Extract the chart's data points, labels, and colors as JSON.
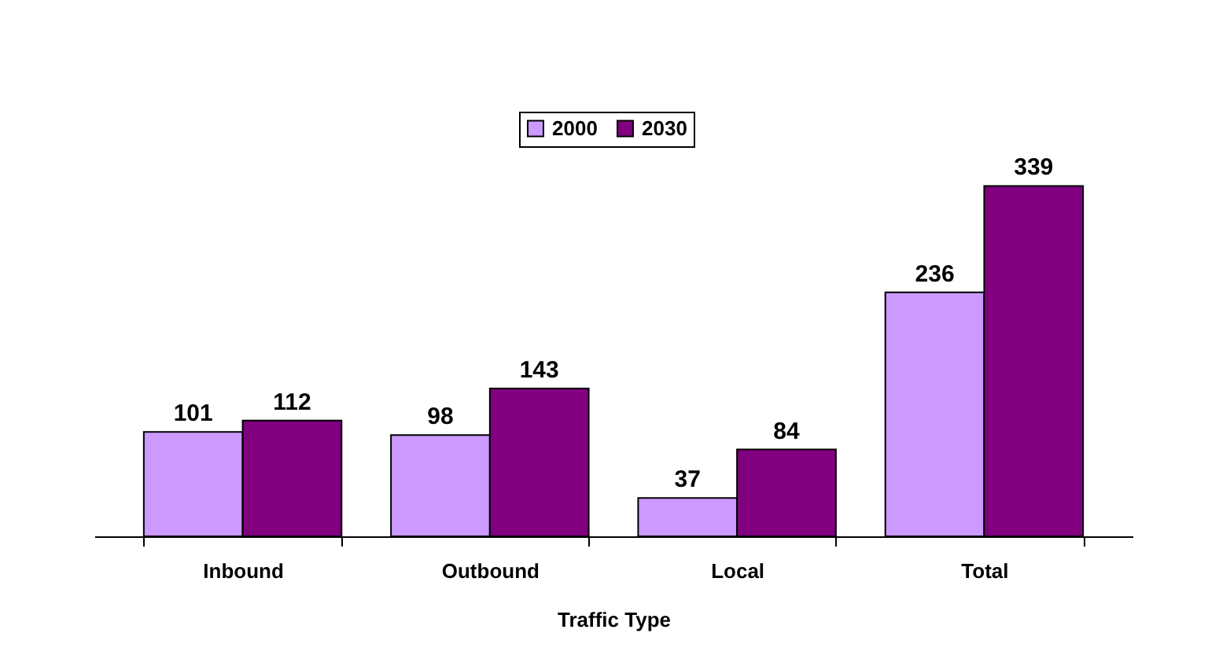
{
  "chart_data": {
    "type": "bar",
    "xlabel": "Traffic Type",
    "categories": [
      "Inbound",
      "Outbound",
      "Local",
      "Total"
    ],
    "series": [
      {
        "name": "2000",
        "color": "#cc99ff",
        "values": [
          101,
          98,
          37,
          236
        ]
      },
      {
        "name": "2030",
        "color": "#800080",
        "values": [
          112,
          143,
          84,
          339
        ]
      }
    ],
    "data_labels": true,
    "legend": "top",
    "grid": false,
    "tick_labels": "x"
  }
}
